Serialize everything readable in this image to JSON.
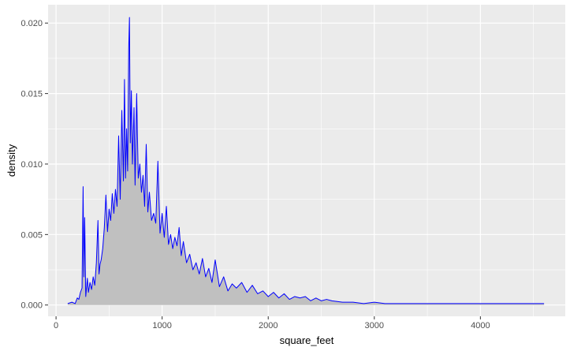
{
  "chart_data": {
    "type": "area",
    "title": "",
    "xlabel": "square_feet",
    "ylabel": "density",
    "xlim": [
      -75,
      4800
    ],
    "ylim": [
      -0.0008,
      0.0213
    ],
    "x_ticks": [
      0,
      1000,
      2000,
      3000,
      4000
    ],
    "x_tick_labels": [
      "0",
      "1000",
      "2000",
      "3000",
      "4000"
    ],
    "y_ticks": [
      0.0,
      0.005,
      0.01,
      0.015,
      0.02
    ],
    "y_tick_labels": [
      "0.000",
      "0.005",
      "0.010",
      "0.015",
      "0.020"
    ],
    "grid": true,
    "legend": "none",
    "colors": {
      "panel": "#ebebeb",
      "grid": "#ffffff",
      "fill": "#c0c0c0",
      "line": "#0000ff"
    },
    "series": [
      {
        "x": [
          110,
          150,
          180,
          200,
          215,
          230,
          245,
          255,
          262,
          270,
          280,
          295,
          305,
          320,
          335,
          350,
          365,
          380,
          395,
          405,
          415,
          425,
          440,
          455,
          470,
          485,
          500,
          515,
          530,
          545,
          560,
          575,
          590,
          605,
          620,
          635,
          645,
          655,
          665,
          675,
          685,
          692,
          700,
          710,
          720,
          735,
          745,
          760,
          775,
          790,
          805,
          820,
          835,
          850,
          865,
          880,
          900,
          920,
          940,
          960,
          980,
          1000,
          1020,
          1040,
          1060,
          1080,
          1100,
          1120,
          1140,
          1160,
          1180,
          1200,
          1230,
          1260,
          1290,
          1320,
          1350,
          1380,
          1410,
          1440,
          1470,
          1500,
          1540,
          1580,
          1620,
          1660,
          1700,
          1750,
          1800,
          1850,
          1900,
          1950,
          2000,
          2050,
          2100,
          2150,
          2200,
          2250,
          2300,
          2350,
          2400,
          2450,
          2500,
          2550,
          2600,
          2700,
          2800,
          2900,
          3000,
          3100,
          3200,
          3300,
          3400,
          3600,
          3800,
          4000,
          4200,
          4400,
          4600
        ],
        "values": [
          0.0001,
          0.0002,
          0.0001,
          0.0005,
          0.0004,
          0.0009,
          0.0012,
          0.0084,
          0.002,
          0.0062,
          0.0006,
          0.0019,
          0.0009,
          0.0016,
          0.0011,
          0.002,
          0.0014,
          0.003,
          0.006,
          0.0022,
          0.0029,
          0.0032,
          0.004,
          0.0055,
          0.0078,
          0.0052,
          0.0068,
          0.006,
          0.0079,
          0.0065,
          0.0082,
          0.007,
          0.012,
          0.0075,
          0.0138,
          0.0088,
          0.016,
          0.009,
          0.0125,
          0.0095,
          0.0182,
          0.0204,
          0.0115,
          0.0152,
          0.01,
          0.014,
          0.0085,
          0.015,
          0.009,
          0.01,
          0.008,
          0.0092,
          0.007,
          0.0114,
          0.0066,
          0.008,
          0.006,
          0.0065,
          0.0058,
          0.0102,
          0.0051,
          0.0065,
          0.0048,
          0.007,
          0.0043,
          0.005,
          0.004,
          0.0048,
          0.0042,
          0.0055,
          0.0035,
          0.0045,
          0.003,
          0.0036,
          0.0025,
          0.003,
          0.0022,
          0.0033,
          0.002,
          0.0026,
          0.0016,
          0.0032,
          0.0013,
          0.002,
          0.001,
          0.0015,
          0.0012,
          0.0016,
          0.0009,
          0.0014,
          0.0008,
          0.001,
          0.0006,
          0.0009,
          0.0005,
          0.0008,
          0.0004,
          0.0006,
          0.0005,
          0.0006,
          0.0003,
          0.0005,
          0.0003,
          0.0004,
          0.0003,
          0.0002,
          0.0002,
          0.0001,
          0.0002,
          0.0001,
          0.0001,
          0.0001,
          0.0001,
          0.0001,
          0.0001,
          0.0001,
          0.0001,
          0.0001,
          0.0001
        ]
      }
    ]
  }
}
